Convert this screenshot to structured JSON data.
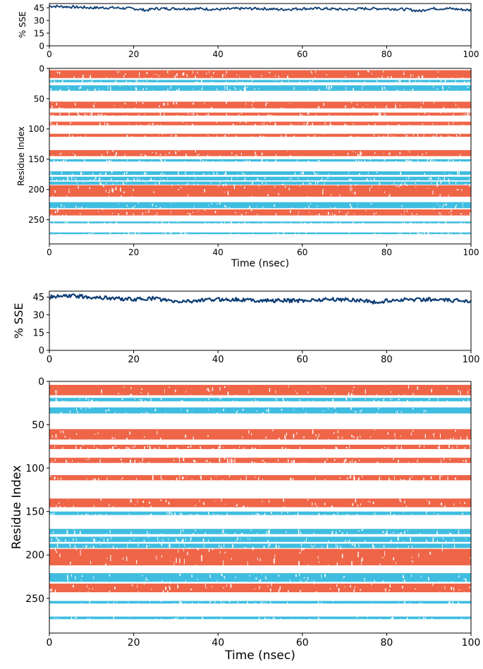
{
  "colors": {
    "helix": "#ef6548",
    "strand": "#3fbde0",
    "sse_line": "#0b3c73",
    "axis": "#000000"
  },
  "chart_data": [
    {
      "type": "line",
      "panel": "top-sse",
      "xlabel": "",
      "ylabel": "% SSE",
      "xlim": [
        0,
        100
      ],
      "ylim": [
        0,
        50
      ],
      "xticks": [
        0,
        20,
        40,
        60,
        80,
        100
      ],
      "yticks": [
        0,
        15,
        30,
        45
      ],
      "series": [
        {
          "x": [
            0,
            5,
            10,
            15,
            20,
            23,
            25,
            30,
            35,
            40,
            45,
            50,
            55,
            60,
            65,
            70,
            75,
            80,
            85,
            88,
            90,
            95,
            100
          ],
          "values": [
            47,
            46,
            45,
            45,
            44,
            42,
            44,
            44,
            44,
            43,
            44,
            44,
            43,
            44,
            44,
            43,
            44,
            44,
            43,
            41,
            44,
            44,
            42
          ]
        }
      ]
    },
    {
      "type": "heatmap",
      "panel": "top-residue",
      "xlabel": "Time (nsec)",
      "ylabel": "Residue Index",
      "xlim": [
        0,
        100
      ],
      "ylim": [
        0,
        290
      ],
      "xticks": [
        0,
        20,
        40,
        60,
        80,
        100
      ],
      "yticks": [
        0,
        50,
        100,
        150,
        200,
        250
      ],
      "helix_bands": [
        [
          3,
          16
        ],
        [
          55,
          66
        ],
        [
          73,
          78
        ],
        [
          88,
          94
        ],
        [
          108,
          113
        ],
        [
          135,
          145
        ],
        [
          193,
          212
        ],
        [
          233,
          243
        ]
      ],
      "strand_bands": [
        [
          19,
          23
        ],
        [
          28,
          37
        ],
        [
          150,
          154
        ],
        [
          170,
          176
        ],
        [
          179,
          185
        ],
        [
          187,
          192
        ],
        [
          221,
          231
        ],
        [
          253,
          256
        ],
        [
          271,
          274
        ]
      ]
    },
    {
      "type": "line",
      "panel": "bottom-sse",
      "xlabel": "",
      "ylabel": "% SSE",
      "xlim": [
        0,
        100
      ],
      "ylim": [
        0,
        50
      ],
      "xticks": [
        0,
        20,
        40,
        60,
        80,
        100
      ],
      "yticks": [
        0,
        15,
        30,
        45
      ],
      "series": [
        {
          "x": [
            0,
            5,
            10,
            15,
            20,
            25,
            28,
            30,
            35,
            40,
            45,
            50,
            55,
            60,
            65,
            70,
            75,
            78,
            80,
            85,
            90,
            95,
            100
          ],
          "values": [
            45,
            46,
            45,
            44,
            43,
            44,
            42,
            41,
            42,
            43,
            43,
            42,
            42,
            42,
            43,
            43,
            42,
            40,
            42,
            43,
            43,
            42,
            42
          ]
        }
      ]
    },
    {
      "type": "heatmap",
      "panel": "bottom-residue",
      "xlabel": "Time (nsec)",
      "ylabel": "Residue Index",
      "xlim": [
        0,
        100
      ],
      "ylim": [
        0,
        290
      ],
      "xticks": [
        0,
        20,
        40,
        60,
        80,
        100
      ],
      "yticks": [
        0,
        50,
        100,
        150,
        200,
        250
      ],
      "helix_bands": [
        [
          4,
          16
        ],
        [
          55,
          67
        ],
        [
          73,
          78
        ],
        [
          88,
          94
        ],
        [
          108,
          114
        ],
        [
          135,
          145
        ],
        [
          193,
          212
        ],
        [
          233,
          243
        ]
      ],
      "strand_bands": [
        [
          19,
          23
        ],
        [
          30,
          37
        ],
        [
          150,
          154
        ],
        [
          170,
          176
        ],
        [
          179,
          185
        ],
        [
          187,
          192
        ],
        [
          221,
          231
        ],
        [
          253,
          256
        ],
        [
          271,
          274
        ]
      ]
    }
  ]
}
